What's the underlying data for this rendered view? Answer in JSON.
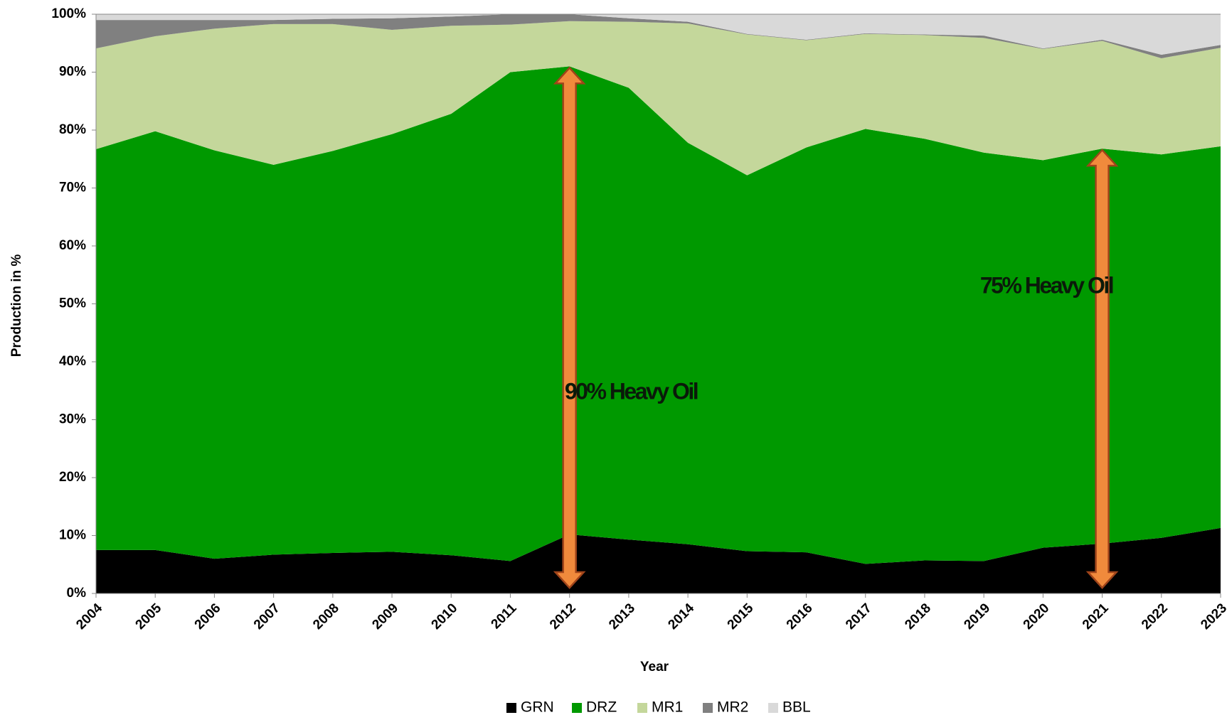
{
  "chart_data": {
    "type": "stacked_area",
    "x_label": "Year",
    "y_label": "Production in %",
    "categories": [
      "2004",
      "2005",
      "2006",
      "2007",
      "2008",
      "2009",
      "2010",
      "2011",
      "2012",
      "2013",
      "2014",
      "2015",
      "2016",
      "2017",
      "2018",
      "2019",
      "2020",
      "2021",
      "2022",
      "2023"
    ],
    "series": [
      {
        "name": "GRN",
        "color": "#000000",
        "values": [
          7.5,
          7.5,
          6,
          6.7,
          7,
          7.2,
          6.6,
          5.6,
          10.2,
          9.3,
          8.5,
          7.3,
          7.1,
          5.1,
          5.7,
          5.6,
          7.9,
          8.6,
          9.6,
          11.3
        ]
      },
      {
        "name": "DRZ",
        "color": "#009900",
        "values": [
          69.2,
          72.3,
          70.5,
          67.3,
          69.4,
          72.1,
          76.2,
          84.4,
          80.8,
          78,
          69.3,
          64.9,
          69.9,
          75.1,
          72.8,
          70.5,
          66.9,
          68.2,
          66.2,
          65.9
        ]
      },
      {
        "name": "MR1",
        "color": "#c4d79b",
        "values": [
          17.4,
          16.4,
          21,
          24.3,
          21.9,
          18,
          15.2,
          8.2,
          7.8,
          11.4,
          20.6,
          24.3,
          18.5,
          16.4,
          17.9,
          19.8,
          19.2,
          18.6,
          16.6,
          17
        ]
      },
      {
        "name": "MR2",
        "color": "#808080",
        "values": [
          4.9,
          2.8,
          1.5,
          0.7,
          0.9,
          2,
          1.6,
          1.8,
          1.2,
          0.6,
          0.3,
          0.1,
          0.1,
          0.1,
          0.1,
          0.4,
          0.1,
          0.2,
          0.6,
          0.5
        ]
      },
      {
        "name": "BBL",
        "color": "#d9d9d9",
        "values": [
          1,
          1,
          1,
          1,
          0.8,
          0.7,
          0.4,
          0,
          0,
          0.7,
          1.3,
          3.4,
          4.4,
          3.3,
          3.5,
          3.7,
          5.9,
          4.4,
          7,
          5.3
        ]
      }
    ],
    "ylim": [
      0,
      100
    ],
    "yticks": [
      {
        "value": 0,
        "label": "0%"
      },
      {
        "value": 10,
        "label": "10%"
      },
      {
        "value": 20,
        "label": "20%"
      },
      {
        "value": 30,
        "label": "30%"
      },
      {
        "value": 40,
        "label": "40%"
      },
      {
        "value": 50,
        "label": "50%"
      },
      {
        "value": 60,
        "label": "60%"
      },
      {
        "value": 70,
        "label": "70%"
      },
      {
        "value": 80,
        "label": "80%"
      },
      {
        "value": 90,
        "label": "90%"
      },
      {
        "value": 100,
        "label": "100%"
      }
    ],
    "annotations": [
      "90% Heavy Oil",
      "75% Heavy Oil"
    ],
    "legend": "bottom"
  }
}
